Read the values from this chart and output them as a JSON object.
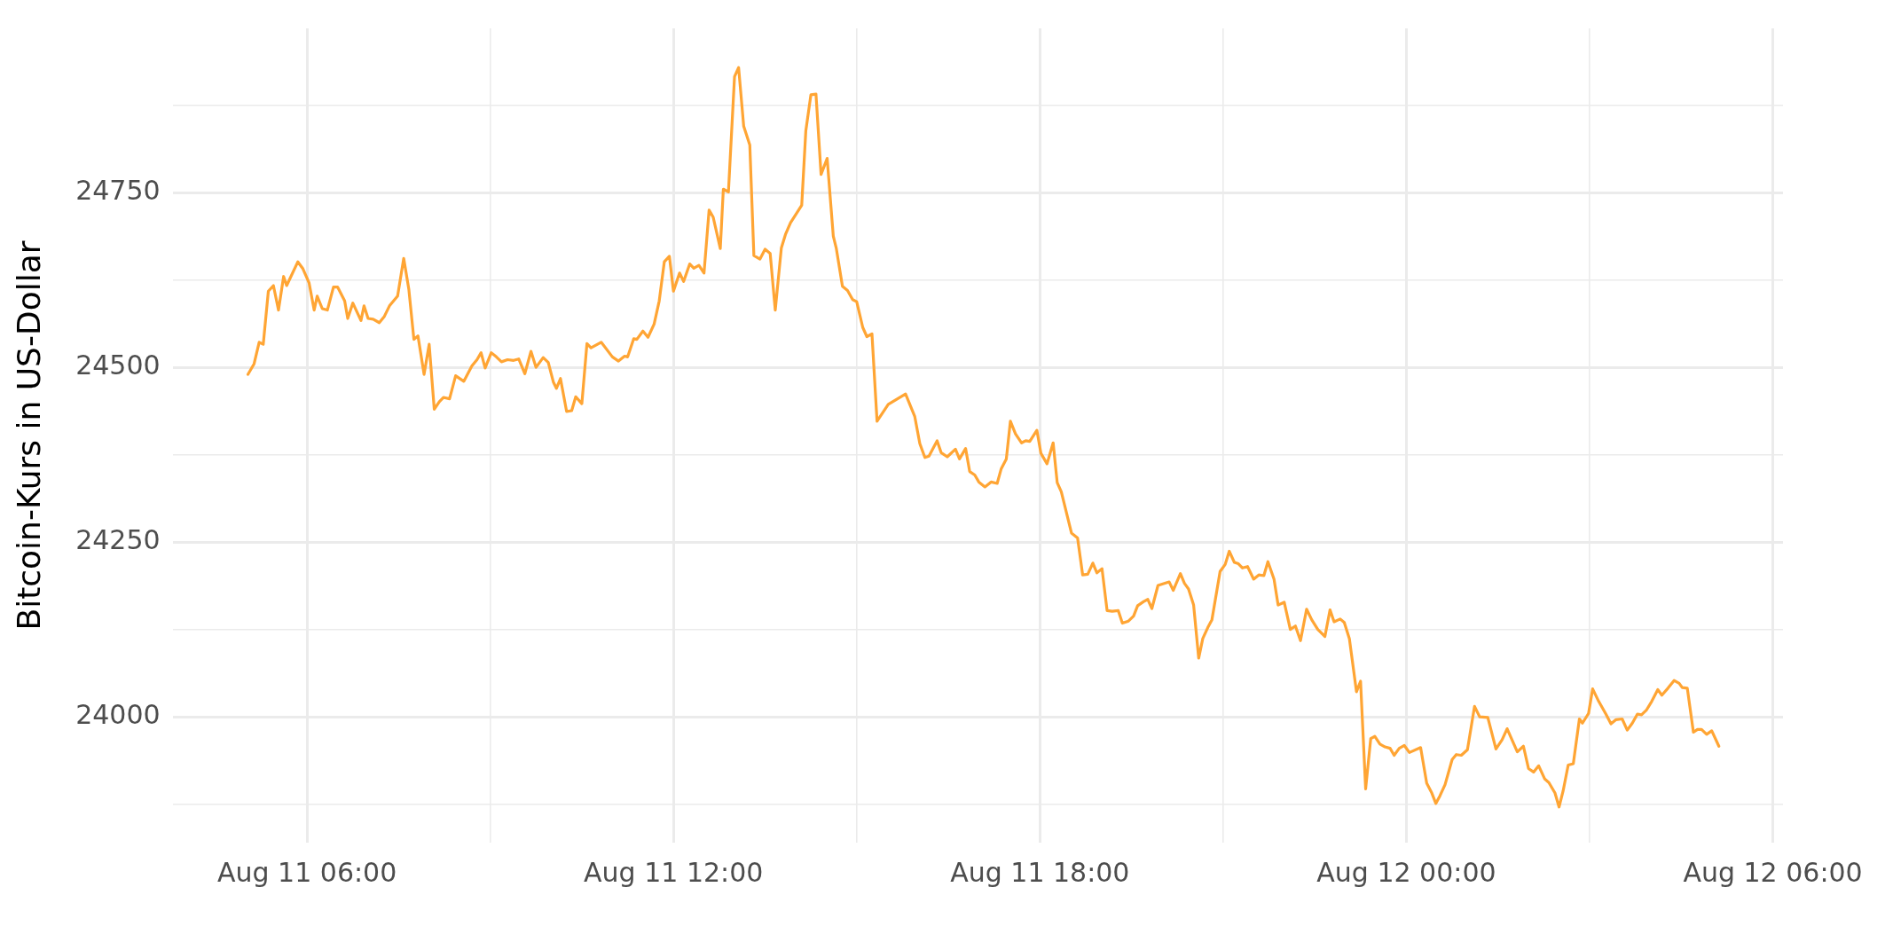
{
  "chart_data": {
    "type": "line",
    "ylabel": "Bitcoin-Kurs in US-Dollar",
    "xlim": [
      "--08-11T03:48",
      "--08-12T06:10"
    ],
    "xticks": [
      {
        "value": "--08-11T06:00",
        "label": "Aug 11 06:00"
      },
      {
        "value": "--08-11T09:00",
        "label": null
      },
      {
        "value": "--08-11T12:00",
        "label": "Aug 11 12:00"
      },
      {
        "value": "--08-11T15:00",
        "label": null
      },
      {
        "value": "--08-11T18:00",
        "label": "Aug 11 18:00"
      },
      {
        "value": "--08-11T21:00",
        "label": null
      },
      {
        "value": "--08-12T00:00",
        "label": "Aug 12 00:00"
      },
      {
        "value": "--08-12T03:00",
        "label": null
      },
      {
        "value": "--08-12T06:00",
        "label": "Aug 12 06:00"
      }
    ],
    "ylim": [
      23820,
      24985
    ],
    "yticks": [
      {
        "value": 23875,
        "label": null
      },
      24000,
      {
        "value": 24125,
        "label": null
      },
      24250,
      {
        "value": 24375,
        "label": null
      },
      24500,
      {
        "value": 24625,
        "label": null
      },
      24750,
      {
        "value": 24875,
        "label": null
      }
    ],
    "grid": true,
    "legend": false,
    "marker": "none",
    "line_style": "solid",
    "series": [
      {
        "color": "#ffa534",
        "x": [
          "--08-11T05:02",
          "--08-11T05:08",
          "--08-11T05:13",
          "--08-11T05:17",
          "--08-11T05:22",
          "--08-11T05:27",
          "--08-11T05:32",
          "--08-11T05:37",
          "--08-11T05:40",
          "--08-11T05:51",
          "--08-11T05:56",
          "--08-11T06:02",
          "--08-11T06:07",
          "--08-11T06:10",
          "--08-11T06:15",
          "--08-11T06:20",
          "--08-11T06:26",
          "--08-11T06:30",
          "--08-11T06:37",
          "--08-11T06:40",
          "--08-11T06:45",
          "--08-11T06:53",
          "--08-11T06:56",
          "--08-11T07:00",
          "--08-11T07:05",
          "--08-11T07:11",
          "--08-11T07:16",
          "--08-11T07:21",
          "--08-11T07:29",
          "--08-11T07:35",
          "--08-11T07:40",
          "--08-11T07:45",
          "--08-11T07:49",
          "--08-11T07:55",
          "--08-11T08:00",
          "--08-11T08:05",
          "--08-11T08:10",
          "--08-11T08:14",
          "--08-11T08:20",
          "--08-11T08:26",
          "--08-11T08:34",
          "--08-11T08:42",
          "--08-11T08:47",
          "--08-11T08:51",
          "--08-11T08:55",
          "--08-11T09:01",
          "--08-11T09:06",
          "--08-11T09:11",
          "--08-11T09:17",
          "--08-11T09:23",
          "--08-11T09:28",
          "--08-11T09:34",
          "--08-11T09:40",
          "--08-11T09:45",
          "--08-11T09:52",
          "--08-11T09:57",
          "--08-11T10:02",
          "--08-11T10:05",
          "--08-11T10:09",
          "--08-11T10:15",
          "--08-11T10:20",
          "--08-11T10:24",
          "--08-11T10:30",
          "--08-11T10:35",
          "--08-11T10:39",
          "--08-11T10:49",
          "--08-11T11:00",
          "--08-11T11:06",
          "--08-11T11:12",
          "--08-11T11:15",
          "--08-11T11:21",
          "--08-11T11:24",
          "--08-11T11:30",
          "--08-11T11:35",
          "--08-11T11:41",
          "--08-11T11:46",
          "--08-11T11:51",
          "--08-11T11:56",
          "--08-11T12:00",
          "--08-11T12:06",
          "--08-11T12:10",
          "--08-11T12:16",
          "--08-11T12:20",
          "--08-11T12:25",
          "--08-11T12:30",
          "--08-11T12:35",
          "--08-11T12:39",
          "--08-11T12:46",
          "--08-11T12:49",
          "--08-11T12:54",
          "--08-11T13:00",
          "--08-11T13:04",
          "--08-11T13:09",
          "--08-11T13:15",
          "--08-11T13:19",
          "--08-11T13:25",
          "--08-11T13:30",
          "--08-11T13:35",
          "--08-11T13:40",
          "--08-11T13:46",
          "--08-11T13:50",
          "--08-11T13:55",
          "--08-11T14:06",
          "--08-11T14:10",
          "--08-11T14:15",
          "--08-11T14:20",
          "--08-11T14:25",
          "--08-11T14:31",
          "--08-11T14:37",
          "--08-11T14:40",
          "--08-11T14:46",
          "--08-11T14:51",
          "--08-11T14:56",
          "--08-11T15:00",
          "--08-11T15:06",
          "--08-11T15:10",
          "--08-11T15:15",
          "--08-11T15:20",
          "--08-11T15:31",
          "--08-11T15:48",
          "--08-11T15:57",
          "--08-11T16:02",
          "--08-11T16:07",
          "--08-11T16:11",
          "--08-11T16:19",
          "--08-11T16:23",
          "--08-11T16:29",
          "--08-11T16:37",
          "--08-11T16:41",
          "--08-11T16:47",
          "--08-11T16:51",
          "--08-11T16:56",
          "--08-11T17:00",
          "--08-11T17:06",
          "--08-11T17:12",
          "--08-11T17:18",
          "--08-11T17:22",
          "--08-11T17:27",
          "--08-11T17:31",
          "--08-11T17:36",
          "--08-11T17:42",
          "--08-11T17:46",
          "--08-11T17:50",
          "--08-11T17:57",
          "--08-11T18:01",
          "--08-11T18:07",
          "--08-11T18:13",
          "--08-11T18:17",
          "--08-11T18:21",
          "--08-11T18:31",
          "--08-11T18:37",
          "--08-11T18:42",
          "--08-11T18:47",
          "--08-11T18:52",
          "--08-11T18:56",
          "--08-11T19:01",
          "--08-11T19:06",
          "--08-11T19:11",
          "--08-11T19:17",
          "--08-11T19:21",
          "--08-11T19:27",
          "--08-11T19:32",
          "--08-11T19:36",
          "--08-11T19:42",
          "--08-11T19:46",
          "--08-11T19:50",
          "--08-11T19:56",
          "--08-11T20:07",
          "--08-11T20:11",
          "--08-11T20:18",
          "--08-11T20:22",
          "--08-11T20:26",
          "--08-11T20:31",
          "--08-11T20:36",
          "--08-11T20:40",
          "--08-11T20:45",
          "--08-11T20:49",
          "--08-11T20:57",
          "--08-11T21:02",
          "--08-11T21:06",
          "--08-11T21:11",
          "--08-11T21:15",
          "--08-11T21:19",
          "--08-11T21:24",
          "--08-11T21:30",
          "--08-11T21:35",
          "--08-11T21:40",
          "--08-11T21:44",
          "--08-11T21:50",
          "--08-11T21:54",
          "--08-11T22:00",
          "--08-11T22:06",
          "--08-11T22:11",
          "--08-11T22:16",
          "--08-11T22:22",
          "--08-11T22:27",
          "--08-11T22:33",
          "--08-11T22:40",
          "--08-11T22:45",
          "--08-11T22:49",
          "--08-11T22:55",
          "--08-11T22:59",
          "--08-11T23:04",
          "--08-11T23:11",
          "--08-11T23:15",
          "--08-11T23:20",
          "--08-11T23:25",
          "--08-11T23:29",
          "--08-11T23:34",
          "--08-11T23:39",
          "--08-11T23:44",
          "--08-11T23:48",
          "--08-11T23:53",
          "--08-11T23:58",
          "--08-12T00:03",
          "--08-12T00:14",
          "--08-12T00:20",
          "--08-12T00:25",
          "--08-12T00:29",
          "--08-12T00:33",
          "--08-12T00:38",
          "--08-12T00:45",
          "--08-12T00:49",
          "--08-12T00:54",
          "--08-12T01:00",
          "--08-12T01:07",
          "--08-12T01:12",
          "--08-12T01:20",
          "--08-12T01:28",
          "--08-12T01:34",
          "--08-12T01:39",
          "--08-12T01:49",
          "--08-12T01:55",
          "--08-12T02:00",
          "--08-12T02:05",
          "--08-12T02:10",
          "--08-12T02:16",
          "--08-12T02:20",
          "--08-12T02:26",
          "--08-12T02:30",
          "--08-12T02:34",
          "--08-12T02:39",
          "--08-12T02:44",
          "--08-12T02:50",
          "--08-12T02:53",
          "--08-12T02:59",
          "--08-12T03:03",
          "--08-12T03:09",
          "--08-12T03:16",
          "--08-12T03:21",
          "--08-12T03:26",
          "--08-12T03:32",
          "--08-12T03:37",
          "--08-12T03:42",
          "--08-12T03:47",
          "--08-12T03:51",
          "--08-12T03:56",
          "--08-12T04:01",
          "--08-12T04:07",
          "--08-12T04:11",
          "--08-12T04:17",
          "--08-12T04:23",
          "--08-12T04:28",
          "--08-12T04:31",
          "--08-12T04:36",
          "--08-12T04:42",
          "--08-12T04:46",
          "--08-12T04:50",
          "--08-12T04:55",
          "--08-12T05:00",
          "--08-12T05:07"
        ],
        "values": [
          24490,
          24505,
          24536,
          24533,
          24609,
          24617,
          24582,
          24630,
          24617,
          24651,
          24641,
          24621,
          24582,
          24602,
          24584,
          24582,
          24615,
          24615,
          24595,
          24570,
          24592,
          24567,
          24588,
          24570,
          24569,
          24564,
          24573,
          24588,
          24602,
          24656,
          24612,
          24540,
          24545,
          24490,
          24533,
          24440,
          24451,
          24457,
          24455,
          24488,
          24480,
          24502,
          24511,
          24521,
          24499,
          24521,
          24515,
          24508,
          24511,
          24510,
          24512,
          24491,
          24523,
          24500,
          24514,
          24507,
          24479,
          24470,
          24484,
          24437,
          24438,
          24458,
          24448,
          24534,
          24528,
          24536,
          24515,
          24509,
          24516,
          24515,
          24541,
          24540,
          24552,
          24543,
          24562,
          24595,
          24651,
          24659,
          24609,
          24635,
          24623,
          24648,
          24642,
          24646,
          24635,
          24725,
          24715,
          24670,
          24755,
          24751,
          24916,
          24929,
          24845,
          24818,
          24660,
          24655,
          24669,
          24663,
          24582,
          24671,
          24690,
          24707,
          24732,
          24838,
          24890,
          24891,
          24776,
          24799,
          24688,
          24670,
          24616,
          24610,
          24597,
          24594,
          24557,
          24544,
          24548,
          24423,
          24447,
          24462,
          24430,
          24391,
          24371,
          24373,
          24395,
          24378,
          24372,
          24383,
          24369,
          24384,
          24351,
          24346,
          24336,
          24329,
          24336,
          24334,
          24355,
          24369,
          24423,
          24405,
          24392,
          24395,
          24394,
          24410,
          24377,
          24362,
          24392,
          24335,
          24322,
          24263,
          24256,
          24203,
          24204,
          24220,
          24206,
          24212,
          24152,
          24151,
          24152,
          24134,
          24137,
          24144,
          24159,
          24165,
          24168,
          24155,
          24188,
          24193,
          24181,
          24205,
          24191,
          24183,
          24160,
          24084,
          24112,
          24128,
          24139,
          24208,
          24218,
          24237,
          24221,
          24219,
          24213,
          24215,
          24197,
          24203,
          24202,
          24222,
          24197,
          24160,
          24164,
          24125,
          24130,
          24109,
          24154,
          24139,
          24125,
          24115,
          24153,
          24136,
          24140,
          24135,
          24112,
          24036,
          24051,
          23897,
          23969,
          23972,
          23961,
          23957,
          23955,
          23945,
          23955,
          23959,
          23949,
          23956,
          23905,
          23891,
          23876,
          23887,
          23903,
          23939,
          23946,
          23945,
          23953,
          24015,
          24000,
          23999,
          23954,
          23967,
          23983,
          23950,
          23958,
          23926,
          23921,
          23930,
          23911,
          23906,
          23891,
          23871,
          23894,
          23931,
          23933,
          23997,
          23991,
          24005,
          24040,
          24022,
          24004,
          23990,
          23996,
          23997,
          23981,
          23991,
          24004,
          24003,
          24010,
          24022,
          24039,
          24031,
          24041,
          24052,
          24048,
          24042,
          24041,
          23978,
          23982,
          23982,
          23975,
          23980,
          23958
        ]
      }
    ]
  }
}
